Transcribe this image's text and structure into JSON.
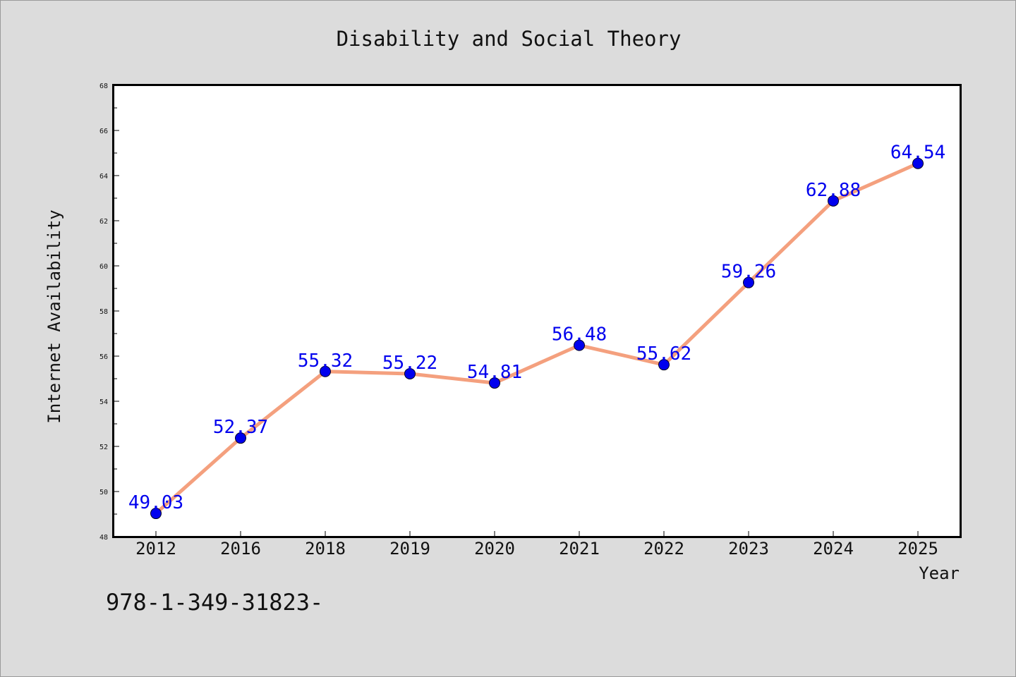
{
  "footer": {
    "text": "978-1-349-31823-"
  },
  "chart_data": {
    "type": "line",
    "title": "Disability and Social Theory",
    "xlabel": "Year",
    "ylabel": "Internet Availability",
    "categories": [
      "2012",
      "2016",
      "2018",
      "2019",
      "2020",
      "2021",
      "2022",
      "2023",
      "2024",
      "2025"
    ],
    "series": [
      {
        "values": [
          49.03,
          52.37,
          55.32,
          55.22,
          54.81,
          56.48,
          55.62,
          59.26,
          62.88,
          64.54
        ],
        "data_labels": [
          "49.03",
          "52.37",
          "55.32",
          "55.22",
          "54.81",
          "56.48",
          "55.62",
          "59.26",
          "62.88",
          "64.54"
        ]
      }
    ],
    "ylim": [
      48,
      68
    ],
    "y_ticks": [
      48,
      50,
      52,
      54,
      56,
      58,
      60,
      62,
      64,
      66,
      68
    ],
    "grid": false,
    "legend": "none",
    "colors": {
      "line": "#f4a07e",
      "marker": "#0000ee",
      "data_label": "#0000ee",
      "plot_background": "#ffffff",
      "figure_background": "#dcdcdc",
      "frame": "#000000"
    }
  }
}
